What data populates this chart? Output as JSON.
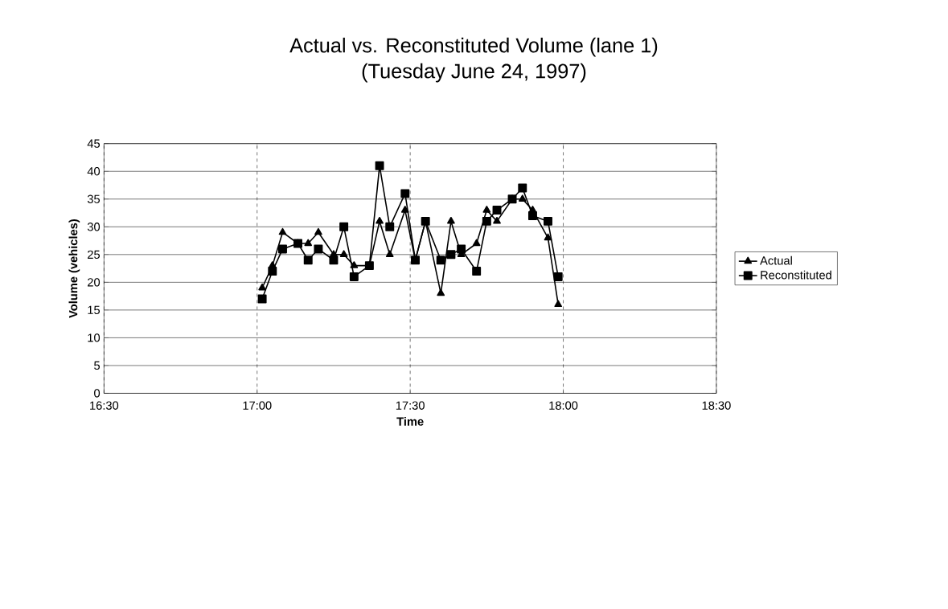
{
  "chart_data": {
    "type": "line",
    "title": "Actual vs. Reconstituted Volume (lane 1)",
    "subtitle": "(Tuesday  June 24, 1997)",
    "xlabel": "Time",
    "ylabel": "Volume (vehicles)",
    "x": [
      17.0167,
      17.05,
      17.0833,
      17.1333,
      17.1667,
      17.2,
      17.25,
      17.2833,
      17.3167,
      17.3667,
      17.4,
      17.4333,
      17.4833,
      17.5167,
      17.55,
      17.6,
      17.6333,
      17.6667,
      17.7167,
      17.75,
      17.7833,
      17.8333,
      17.8667,
      17.9,
      17.95,
      17.9833
    ],
    "series": [
      {
        "name": "Actual",
        "color": "#000000",
        "marker": "triangle",
        "values": [
          19,
          23,
          29,
          27,
          27,
          29,
          25,
          25,
          23,
          23,
          31,
          25,
          33,
          24,
          31,
          18,
          31,
          25,
          27,
          33,
          31,
          35,
          35,
          33,
          28,
          16
        ]
      },
      {
        "name": "Reconstituted",
        "color": "#000000",
        "marker": "square",
        "values": [
          17,
          22,
          26,
          27,
          24,
          26,
          24,
          30,
          21,
          23,
          41,
          30,
          36,
          24,
          31,
          24,
          25,
          26,
          22,
          31,
          33,
          35,
          37,
          32,
          31,
          21
        ]
      }
    ],
    "xlim": [
      16.5,
      18.5
    ],
    "xticks": [
      {
        "value": 16.5,
        "label": "16:30"
      },
      {
        "value": 17,
        "label": "17:00"
      },
      {
        "value": 17.5,
        "label": "17:30"
      },
      {
        "value": 18,
        "label": "18:00"
      },
      {
        "value": 18.5,
        "label": "18:30"
      }
    ],
    "ylim": [
      0,
      45
    ],
    "yticks": [
      0,
      5,
      10,
      15,
      20,
      25,
      30,
      35,
      40,
      45
    ],
    "grid": true,
    "legend": "right",
    "line_style": "solid"
  }
}
